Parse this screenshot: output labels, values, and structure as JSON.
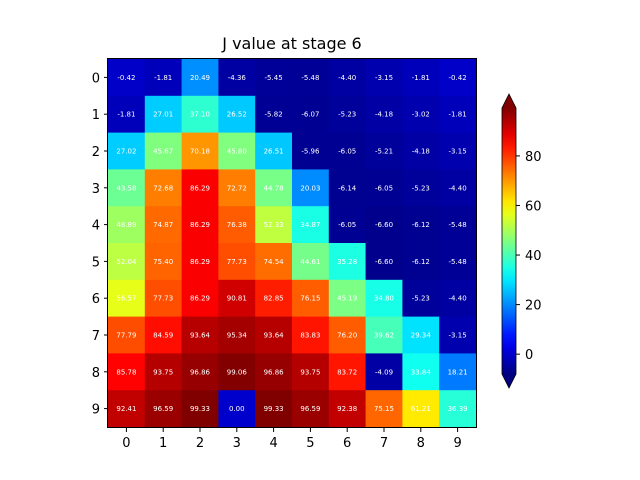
{
  "chart_data": {
    "type": "heatmap",
    "title": "J value at stage 6",
    "x_ticks": [
      "0",
      "1",
      "2",
      "3",
      "4",
      "5",
      "6",
      "7",
      "8",
      "9"
    ],
    "y_ticks": [
      "0",
      "1",
      "2",
      "3",
      "4",
      "5",
      "6",
      "7",
      "8",
      "9"
    ],
    "colormap": "jet",
    "vmin": -8,
    "vmax": 99.33,
    "colorbar_ticks": [
      {
        "value": 0,
        "label": "0"
      },
      {
        "value": 20,
        "label": "20"
      },
      {
        "value": 40,
        "label": "40"
      },
      {
        "value": 60,
        "label": "60"
      },
      {
        "value": 80,
        "label": "80"
      }
    ],
    "colorbar_extend": "both",
    "values": [
      [
        -0.42,
        -1.81,
        20.49,
        -4.36,
        -5.45,
        -5.48,
        -4.4,
        -3.15,
        -1.81,
        -0.42
      ],
      [
        -1.81,
        27.01,
        37.1,
        26.52,
        -5.82,
        -6.07,
        -5.23,
        -4.18,
        -3.02,
        -1.81
      ],
      [
        27.02,
        45.67,
        70.18,
        45.8,
        26.51,
        -5.96,
        -6.05,
        -5.21,
        -4.18,
        -3.15
      ],
      [
        43.58,
        72.68,
        86.29,
        72.72,
        44.78,
        20.03,
        -6.14,
        -6.05,
        -5.23,
        -4.4
      ],
      [
        48.89,
        74.87,
        86.29,
        76.38,
        52.33,
        34.87,
        -6.05,
        -6.6,
        -6.12,
        -5.48
      ],
      [
        52.04,
        75.4,
        86.29,
        77.73,
        74.54,
        44.61,
        35.28,
        -6.6,
        -6.12,
        -5.48
      ],
      [
        56.57,
        77.73,
        86.29,
        90.81,
        82.85,
        76.15,
        45.19,
        34.8,
        -5.23,
        -4.4
      ],
      [
        77.79,
        84.59,
        93.64,
        95.34,
        93.64,
        83.83,
        76.2,
        39.62,
        29.34,
        -3.15
      ],
      [
        85.78,
        93.75,
        96.86,
        99.06,
        96.86,
        93.75,
        83.72,
        -4.09,
        33.84,
        18.21
      ],
      [
        92.41,
        96.59,
        99.33,
        0.0,
        99.33,
        96.59,
        92.38,
        75.15,
        61.21,
        36.39
      ]
    ],
    "labels": [
      [
        "-0.42",
        "-1.81",
        "20.49",
        "-4.36",
        "-5.45",
        "-5.48",
        "-4.40",
        "-3.15",
        "-1.81",
        "-0.42"
      ],
      [
        "-1.81",
        "27.01",
        "37.10",
        "26.52",
        "-5.82",
        "-6.07",
        "-5.23",
        "-4.18",
        "-3.02",
        "-1.81"
      ],
      [
        "27.02",
        "45.67",
        "70.18",
        "45.80",
        "26.51",
        "-5.96",
        "-6.05",
        "-5.21",
        "-4.18",
        "-3.15"
      ],
      [
        "43.58",
        "72.68",
        "86.29",
        "72.72",
        "44.78",
        "20.03",
        "-6.14",
        "-6.05",
        "-5.23",
        "-4.40"
      ],
      [
        "48.89",
        "74.87",
        "86.29",
        "76.38",
        "52.33",
        "34.87",
        "-6.05",
        "-6.60",
        "-6.12",
        "-5.48"
      ],
      [
        "52.04",
        "75.40",
        "86.29",
        "77.73",
        "74.54",
        "44.61",
        "35.28",
        "-6.60",
        "-6.12",
        "-5.48"
      ],
      [
        "56.57",
        "77.73",
        "86.29",
        "90.81",
        "82.85",
        "76.15",
        "45.19",
        "34.80",
        "-5.23",
        "-4.40"
      ],
      [
        "77.79",
        "84.59",
        "93.64",
        "95.34",
        "93.64",
        "83.83",
        "76.20",
        "39.62",
        "29.34",
        "-3.15"
      ],
      [
        "85.78",
        "93.75",
        "96.86",
        "99.06",
        "96.86",
        "93.75",
        "83.72",
        "-4.09",
        "33.84",
        "18.21"
      ],
      [
        "92.41",
        "96.59",
        "99.33",
        "0.00",
        "99.33",
        "96.59",
        "92.38",
        "75.15",
        "61.21",
        "36.39"
      ]
    ]
  }
}
